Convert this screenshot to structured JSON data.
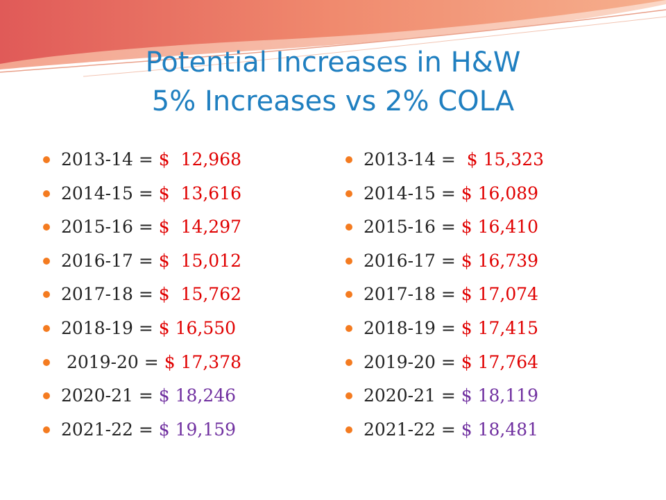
{
  "colors": {
    "title": "#1f7fc0",
    "bullet": "#f47b20",
    "red_value": "#e00000",
    "purple_value": "#7030a0",
    "text": "#222222"
  },
  "title": {
    "line1": "Potential Increases in H&W",
    "line2": "5% Increases vs 2% COLA"
  },
  "left_list": [
    {
      "year": "2013-14",
      "sep": " = ",
      "dollar": "$",
      "amount": "12,968",
      "color": "red"
    },
    {
      "year": "2014-15",
      "sep": " = ",
      "dollar": "$",
      "amount": "13,616",
      "color": "red"
    },
    {
      "year": "2015-16",
      "sep": " = ",
      "dollar": "$",
      "amount": "14,297",
      "color": "red"
    },
    {
      "year": "2016-17",
      "sep": " = ",
      "dollar": "$",
      "amount": "15,012",
      "color": "red"
    },
    {
      "year": "2017-18",
      "sep": " = ",
      "dollar": "$",
      "amount": "15,762",
      "color": "red"
    },
    {
      "year": "2018-19",
      "sep": " = ",
      "dollar": "$",
      "amount": "16,550",
      "color": "red"
    },
    {
      "year": "2019-20",
      "sep": " = ",
      "dollar": "$",
      "amount": "17,378",
      "color": "red"
    },
    {
      "year": "2020-21",
      "sep": " = ",
      "dollar": "$",
      "amount": "18,246",
      "color": "purple"
    },
    {
      "year": "2021-22",
      "sep": " = ",
      "dollar": "$",
      "amount": "19,159",
      "color": "purple"
    }
  ],
  "right_list": [
    {
      "year": "2013-14",
      "sep": " = ",
      "dollar": "$",
      "amount": "15,323",
      "color": "red"
    },
    {
      "year": "2014-15",
      "sep": " = ",
      "dollar": "$",
      "amount": "16,089",
      "color": "red"
    },
    {
      "year": "2015-16",
      "sep": " = ",
      "dollar": "$",
      "amount": "16,410",
      "color": "red"
    },
    {
      "year": "2016-17",
      "sep": " = ",
      "dollar": "$",
      "amount": "16,739",
      "color": "red"
    },
    {
      "year": "2017-18",
      "sep": " = ",
      "dollar": "$",
      "amount": "17,074",
      "color": "red"
    },
    {
      "year": "2018-19",
      "sep": " = ",
      "dollar": "$",
      "amount": "17,415",
      "color": "red"
    },
    {
      "year": "2019-20",
      "sep": " = ",
      "dollar": "$",
      "amount": "17,764",
      "color": "red"
    },
    {
      "year": "2020-21",
      "sep": " = ",
      "dollar": "$",
      "amount": "18,119",
      "color": "purple"
    },
    {
      "year": "2021-22",
      "sep": " = ",
      "dollar": "$",
      "amount": "18,481",
      "color": "purple"
    }
  ]
}
